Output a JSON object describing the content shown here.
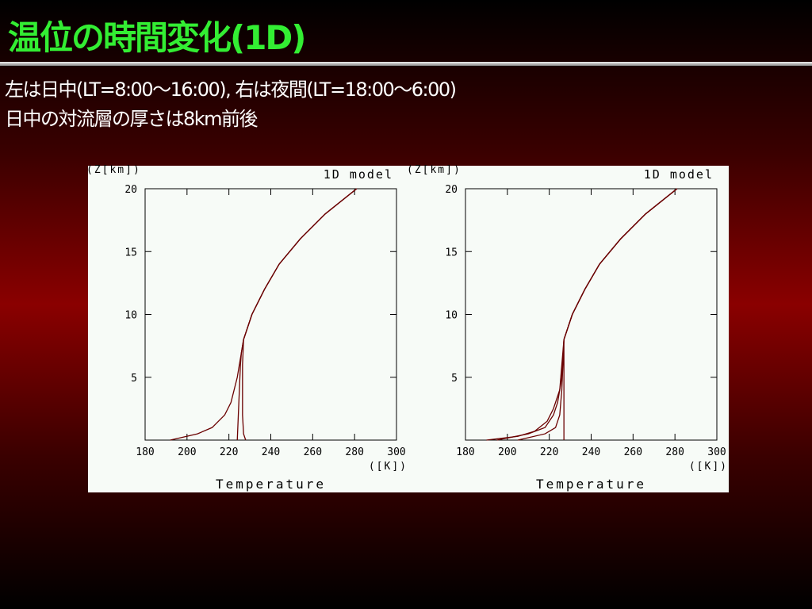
{
  "slide": {
    "title": "温位の時間変化(1D)",
    "lines": [
      "左は日中(LT=8:00〜16:00), 右は夜間(LT=18:00〜6:00)",
      "日中の対流層の厚さは8km前後"
    ]
  },
  "chart_data": [
    {
      "type": "line",
      "title": "1D model",
      "x_label": "Temperature",
      "x_unit": "([K])",
      "y_label": "(Z[km])",
      "xlim": [
        180,
        300
      ],
      "xticks": [
        180,
        200,
        220,
        240,
        260,
        280,
        300
      ],
      "ylim": [
        0,
        20
      ],
      "yticks": [
        5,
        10,
        15,
        20
      ],
      "series": [
        {
          "color": "#6a0000",
          "x": [
            192,
            205,
            212,
            218,
            221,
            224,
            226,
            227,
            231,
            237,
            244,
            254,
            266,
            281
          ],
          "y": [
            0,
            0.5,
            1,
            2,
            3,
            5,
            7,
            8,
            10,
            12,
            14,
            16,
            18,
            20
          ]
        },
        {
          "color": "#6a0000",
          "x": [
            224,
            224.5,
            225,
            225.5,
            226,
            227,
            231,
            237,
            244,
            254,
            266,
            281
          ],
          "y": [
            0,
            2,
            4,
            6,
            7,
            8,
            10,
            12,
            14,
            16,
            18,
            20
          ]
        },
        {
          "color": "#6a0000",
          "x": [
            228,
            227,
            226.5,
            226.5,
            227,
            231,
            237,
            244,
            254,
            266,
            281
          ],
          "y": [
            0,
            0.5,
            2,
            6,
            8,
            10,
            12,
            14,
            16,
            18,
            20
          ]
        }
      ]
    },
    {
      "type": "line",
      "title": "1D model",
      "x_label": "Temperature",
      "x_unit": "([K])",
      "y_label": "(Z[km])",
      "xlim": [
        180,
        300
      ],
      "xticks": [
        180,
        200,
        220,
        240,
        260,
        280,
        300
      ],
      "ylim": [
        0,
        20
      ],
      "yticks": [
        5,
        10,
        15,
        20
      ],
      "series": [
        {
          "color": "#6a0000",
          "x": [
            190,
            205,
            213,
            219,
            222,
            225,
            226,
            227,
            231,
            237,
            244,
            254,
            266,
            281
          ],
          "y": [
            0,
            0.3,
            0.7,
            1.5,
            2.5,
            4,
            6,
            8,
            10,
            12,
            14,
            16,
            18,
            20
          ]
        },
        {
          "color": "#6a0000",
          "x": [
            195,
            210,
            218,
            222,
            224,
            226,
            227,
            231,
            237,
            244,
            254,
            266,
            281
          ],
          "y": [
            0,
            0.5,
            1,
            2,
            3,
            5,
            8,
            10,
            12,
            14,
            16,
            18,
            20
          ]
        },
        {
          "color": "#6a0000",
          "x": [
            205,
            218,
            223,
            225,
            226,
            227,
            231,
            237,
            244,
            254,
            266,
            281
          ],
          "y": [
            0,
            0.5,
            1,
            2,
            4,
            8,
            10,
            12,
            14,
            16,
            18,
            20
          ]
        },
        {
          "color": "#6a0000",
          "x": [
            227,
            227,
            227,
            231,
            237,
            244,
            254,
            266,
            281
          ],
          "y": [
            0,
            6,
            8,
            10,
            12,
            14,
            16,
            18,
            20
          ]
        }
      ]
    }
  ]
}
